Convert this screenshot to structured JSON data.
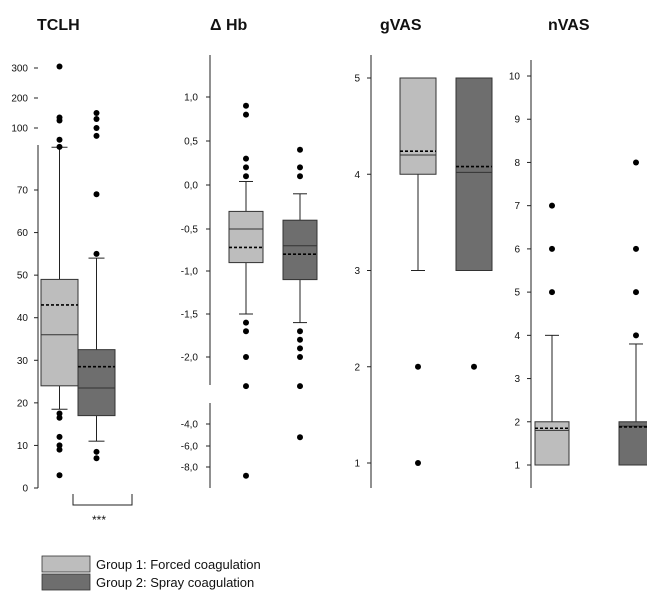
{
  "chart_data": {
    "type": "box",
    "colors": {
      "group1": "#bdbdbd",
      "group2": "#6e6e6e",
      "axis": "#222222",
      "outlier": "#000000"
    },
    "legend": {
      "placement": "bottom-left",
      "entries": [
        "Group 1: Forced coagulation",
        "Group 2: Spray coagulation"
      ]
    },
    "panels": [
      {
        "title": "TCLH",
        "axis_break": true,
        "tick_labels": [
          "0",
          "10",
          "20",
          "30",
          "40",
          "50",
          "60",
          "70",
          "100",
          "200",
          "300"
        ],
        "significance": "***",
        "boxes": [
          {
            "group": "Group 1",
            "q1": 24,
            "median": 36,
            "q3": 49,
            "mean": 43,
            "whisker_low": 18.5,
            "whisker_high": 75.5,
            "outliers": [
              17.5,
              16.5,
              12,
              10,
              9,
              3,
              76,
              85,
              125,
              135,
              305
            ]
          },
          {
            "group": "Group 2",
            "q1": 17,
            "median": 23.5,
            "q3": 32.5,
            "mean": 28.5,
            "whisker_low": 11,
            "whisker_high": 54,
            "outliers": [
              8.5,
              7,
              55,
              69,
              90,
              100,
              130,
              150
            ]
          }
        ]
      },
      {
        "title": "Δ Hb",
        "axis_break": true,
        "tick_labels": [
          "1,0",
          "0,5",
          "0,0",
          "-0,5",
          "-1,0",
          "-1,5",
          "-2,0",
          "-4,0",
          "-6,0",
          "-8,0"
        ],
        "boxes": [
          {
            "group": "Group 1",
            "q1": -0.9,
            "median": -0.5,
            "q3": -0.3,
            "mean": -0.72,
            "whisker_low": -1.5,
            "whisker_high": 0.04,
            "outliers": [
              0.9,
              0.8,
              0.3,
              0.2,
              0.1,
              -1.6,
              -1.7,
              -2.0,
              -2.35,
              -8.8
            ]
          },
          {
            "group": "Group 2",
            "q1": -1.1,
            "median": -0.7,
            "q3": -0.4,
            "mean": -0.8,
            "whisker_low": -1.6,
            "whisker_high": -0.1,
            "outliers": [
              0.4,
              0.2,
              0.1,
              -1.7,
              -1.8,
              -1.9,
              -2.0,
              -2.35,
              -5.2
            ]
          }
        ]
      },
      {
        "title": "gVAS",
        "axis_break": false,
        "tick_labels": [
          "1",
          "2",
          "3",
          "4",
          "5"
        ],
        "boxes": [
          {
            "group": "Group 1",
            "q1": 4,
            "median": 4.2,
            "q3": 5,
            "mean": 4.24,
            "whisker_low": 3,
            "whisker_high": 5,
            "outliers": [
              2,
              1
            ]
          },
          {
            "group": "Group 2",
            "q1": 3,
            "median": 4.02,
            "q3": 5,
            "mean": 4.08,
            "whisker_low": 3,
            "whisker_high": 5,
            "outliers": [
              2
            ]
          }
        ]
      },
      {
        "title": "nVAS",
        "axis_break": false,
        "tick_labels": [
          "1",
          "2",
          "3",
          "4",
          "5",
          "6",
          "7",
          "8",
          "9",
          "10"
        ],
        "boxes": [
          {
            "group": "Group 1",
            "q1": 1,
            "median": 1.8,
            "q3": 2,
            "mean": 1.85,
            "whisker_low": 1,
            "whisker_high": 4,
            "outliers": [
              5,
              6,
              7
            ]
          },
          {
            "group": "Group 2",
            "q1": 1,
            "median": 1.9,
            "q3": 2,
            "mean": 1.88,
            "whisker_low": 1,
            "whisker_high": 3.8,
            "outliers": [
              4,
              5,
              6,
              8
            ]
          }
        ]
      }
    ]
  }
}
